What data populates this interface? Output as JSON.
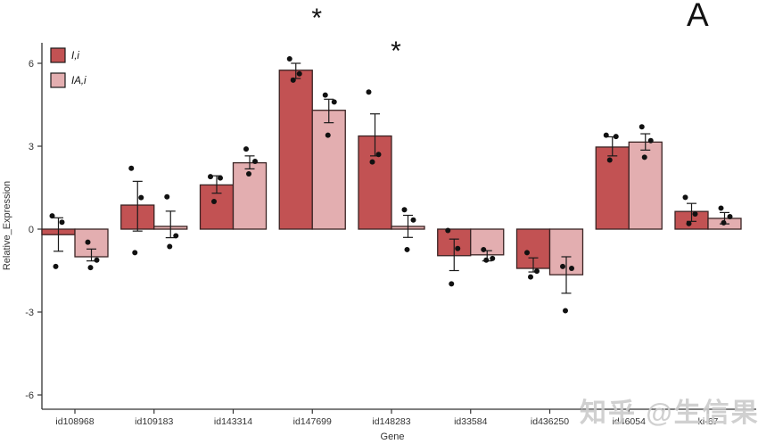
{
  "panel_label": "A",
  "watermark": "知乎 @生信果",
  "colors": {
    "dark_fill": "#c25253",
    "light_fill": "#e3aeb0",
    "bar_border": "#3a2323",
    "errorbar": "#1a1a1a",
    "point": "#111111",
    "axis": "#333333",
    "tick_text": "#333333"
  },
  "legend": {
    "items": [
      {
        "label": "I,i",
        "color_key": "dark_fill"
      },
      {
        "label": "IA,i",
        "color_key": "light_fill"
      }
    ]
  },
  "chart_data": {
    "type": "bar",
    "title": "",
    "xlabel": "Gene",
    "ylabel": "Relative_Expression",
    "ylim": [
      -6.8,
      6.8
    ],
    "yticks": [
      6,
      3,
      0,
      -3,
      -6
    ],
    "grid": false,
    "legend_position": "top-left",
    "categories": [
      "id108968",
      "id109183",
      "id143314",
      "id147699",
      "id148283",
      "id33584",
      "id436250",
      "id46054",
      "ki-67"
    ],
    "series": [
      {
        "name": "I,i",
        "values": [
          -0.2,
          0.87,
          1.6,
          5.75,
          3.37,
          -0.96,
          -1.42,
          2.97,
          0.64
        ],
        "err_low": [
          -0.8,
          -0.07,
          1.3,
          5.45,
          2.65,
          -1.5,
          -1.55,
          2.65,
          0.28
        ],
        "err_high": [
          0.41,
          1.73,
          1.93,
          6.0,
          4.17,
          -0.36,
          -1.04,
          3.34,
          0.93
        ],
        "points": [
          [
            0.48,
            0.25,
            -1.35
          ],
          [
            2.2,
            1.14,
            -0.85
          ],
          [
            1.9,
            1.85,
            1.0
          ],
          [
            6.16,
            5.62,
            5.39
          ],
          [
            4.96,
            2.7,
            2.43
          ],
          [
            -0.05,
            -0.7,
            -1.98
          ],
          [
            -0.85,
            -1.52,
            -1.73
          ],
          [
            3.4,
            3.35,
            2.5
          ],
          [
            1.15,
            0.55,
            0.2
          ]
        ]
      },
      {
        "name": "IA,i",
        "values": [
          -1.0,
          0.1,
          2.4,
          4.3,
          0.1,
          -0.93,
          -1.65,
          3.15,
          0.39
        ],
        "err_low": [
          -1.15,
          -0.31,
          2.18,
          3.85,
          -0.3,
          -1.15,
          -2.32,
          2.86,
          0.19
        ],
        "err_high": [
          -0.72,
          0.65,
          2.65,
          4.7,
          0.5,
          -0.78,
          -1.0,
          3.45,
          0.6
        ],
        "points": [
          [
            -0.47,
            -1.12,
            -1.39
          ],
          [
            1.17,
            -0.24,
            -0.63
          ],
          [
            2.9,
            2.45,
            2.0
          ],
          [
            4.85,
            4.6,
            3.4
          ],
          [
            0.7,
            0.33,
            -0.74
          ],
          [
            -0.74,
            -1.06,
            -1.12
          ],
          [
            -1.35,
            -1.42,
            -2.95
          ],
          [
            3.7,
            3.2,
            2.6
          ],
          [
            0.76,
            0.45,
            0.23
          ]
        ]
      }
    ],
    "annotations": [
      {
        "text": "*",
        "category": "id147699"
      },
      {
        "text": "*",
        "category": "id148283"
      }
    ]
  }
}
